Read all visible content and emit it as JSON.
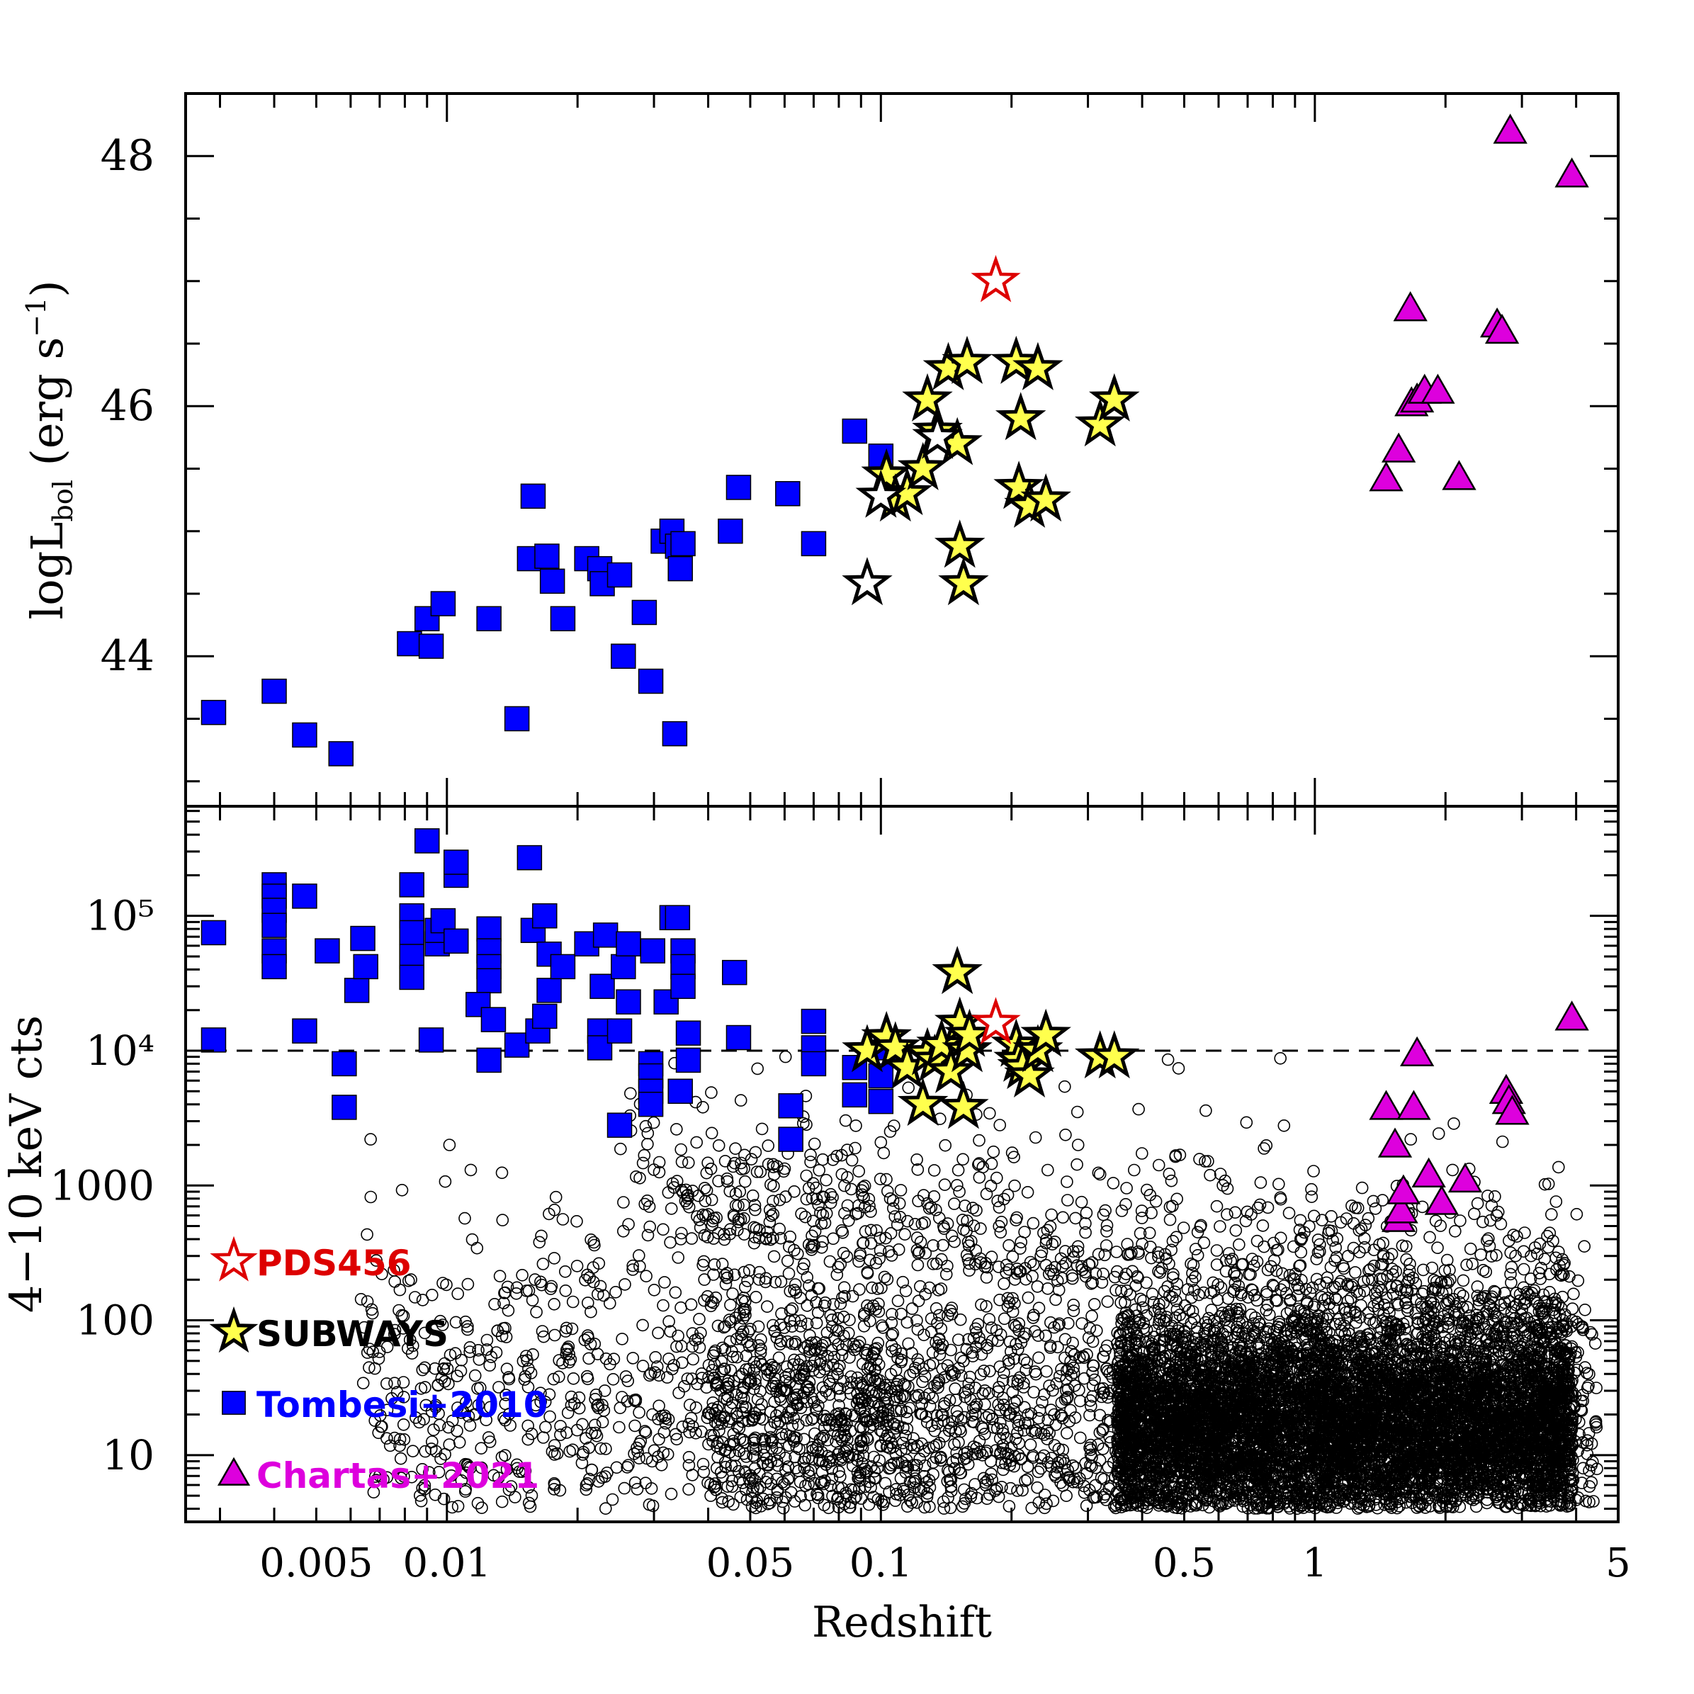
{
  "chart_data": {
    "type": "scatter",
    "xlabel": "Redshift",
    "x_scale": "log",
    "xlim": [
      0.0025,
      5
    ],
    "x_tick_labels": [
      "0.005",
      "0.01",
      "0.05",
      "0.1",
      "0.5",
      "1",
      "5"
    ],
    "x_tick_values": [
      0.005,
      0.01,
      0.05,
      0.1,
      0.5,
      1,
      5
    ],
    "panels": [
      {
        "name": "top",
        "ylabel_main": "logL",
        "ylabel_sub": "bol",
        "ylabel_unit": " (erg s",
        "ylabel_exp": "−1",
        "ylabel_close": ")",
        "ylim": [
          42.8,
          48.5
        ],
        "y_scale": "linear",
        "y_tick_labels": [
          "44",
          "46",
          "48"
        ],
        "y_tick_values": [
          44,
          46,
          48
        ],
        "series": [
          {
            "name": "Tombesi+2010",
            "marker": "square",
            "color": "#0000ff",
            "points": [
              [
                0.0029,
                43.55
              ],
              [
                0.004,
                43.72
              ],
              [
                0.0047,
                43.37
              ],
              [
                0.0057,
                43.22
              ],
              [
                0.0082,
                44.1
              ],
              [
                0.009,
                44.3
              ],
              [
                0.0092,
                44.08
              ],
              [
                0.0098,
                44.42
              ],
              [
                0.0125,
                44.3
              ],
              [
                0.0145,
                43.5
              ],
              [
                0.0155,
                44.78
              ],
              [
                0.0158,
                45.28
              ],
              [
                0.017,
                44.8
              ],
              [
                0.0175,
                44.6
              ],
              [
                0.0185,
                44.3
              ],
              [
                0.021,
                44.78
              ],
              [
                0.0225,
                44.7
              ],
              [
                0.0228,
                44.58
              ],
              [
                0.025,
                44.65
              ],
              [
                0.0255,
                44.0
              ],
              [
                0.0285,
                44.35
              ],
              [
                0.0295,
                43.8
              ],
              [
                0.0315,
                44.92
              ],
              [
                0.033,
                45.0
              ],
              [
                0.0335,
                43.38
              ],
              [
                0.034,
                44.88
              ],
              [
                0.0345,
                44.7
              ],
              [
                0.035,
                44.9
              ],
              [
                0.045,
                45.0
              ],
              [
                0.047,
                45.35
              ],
              [
                0.061,
                45.3
              ],
              [
                0.07,
                44.9
              ],
              [
                0.087,
                45.8
              ],
              [
                0.1,
                45.6
              ]
            ]
          },
          {
            "name": "SUBWAYS",
            "marker": "star",
            "color": "#ffff4d",
            "points": [
              [
                0.103,
                45.45
              ],
              [
                0.108,
                45.25
              ],
              [
                0.115,
                45.3
              ],
              [
                0.125,
                45.5
              ],
              [
                0.128,
                46.05
              ],
              [
                0.135,
                45.8
              ],
              [
                0.143,
                46.3
              ],
              [
                0.15,
                45.7
              ],
              [
                0.152,
                44.88
              ],
              [
                0.155,
                44.58
              ],
              [
                0.158,
                46.35
              ],
              [
                0.205,
                46.35
              ],
              [
                0.208,
                45.35
              ],
              [
                0.21,
                45.9
              ],
              [
                0.22,
                45.2
              ],
              [
                0.23,
                46.3
              ],
              [
                0.24,
                45.25
              ],
              [
                0.32,
                45.85
              ],
              [
                0.345,
                46.05
              ]
            ]
          },
          {
            "name": "SUBWAYS (open)",
            "marker": "star",
            "color": "#ffffff",
            "points": [
              [
                0.093,
                44.58
              ],
              [
                0.1,
                45.28
              ],
              [
                0.135,
                45.75
              ]
            ]
          },
          {
            "name": "PDS456",
            "marker": "open-star",
            "color": "#dd0000",
            "points": [
              [
                0.184,
                47.0
              ]
            ]
          },
          {
            "name": "Chartas+2021",
            "marker": "triangle",
            "color": "#dd00dd",
            "points": [
              [
                1.46,
                45.42
              ],
              [
                1.56,
                45.65
              ],
              [
                1.66,
                46.78
              ],
              [
                1.67,
                46.02
              ],
              [
                1.72,
                46.05
              ],
              [
                1.79,
                46.12
              ],
              [
                1.92,
                46.12
              ],
              [
                2.15,
                45.43
              ],
              [
                2.63,
                46.65
              ],
              [
                2.7,
                46.6
              ],
              [
                2.82,
                48.2
              ],
              [
                3.91,
                47.85
              ]
            ]
          }
        ]
      },
      {
        "name": "bottom",
        "ylabel": "4−10 keV cts",
        "ylim": [
          3.2,
          650000
        ],
        "y_scale": "log",
        "y_tick_labels": [
          "10",
          "100",
          "1000",
          "10⁴",
          "10⁵"
        ],
        "y_tick_values": [
          10,
          100,
          1000,
          10000,
          100000
        ],
        "reference_line": {
          "y": 10000,
          "style": "dashed"
        },
        "series": [
          {
            "name": "Tombesi+2010",
            "marker": "square",
            "color": "#0000ff",
            "points": [
              [
                0.0029,
                75000
              ],
              [
                0.0029,
                12000
              ],
              [
                0.004,
                170000
              ],
              [
                0.004,
                140000
              ],
              [
                0.004,
                110000
              ],
              [
                0.004,
                85000
              ],
              [
                0.004,
                55000
              ],
              [
                0.004,
                42000
              ],
              [
                0.0047,
                140000
              ],
              [
                0.0047,
                14000
              ],
              [
                0.0053,
                55000
              ],
              [
                0.0058,
                8000
              ],
              [
                0.0058,
                3800
              ],
              [
                0.0062,
                28000
              ],
              [
                0.0064,
                68000
              ],
              [
                0.0065,
                42000
              ],
              [
                0.0083,
                170000
              ],
              [
                0.0083,
                100000
              ],
              [
                0.0083,
                75000
              ],
              [
                0.0083,
                50000
              ],
              [
                0.0083,
                35000
              ],
              [
                0.009,
                360000
              ],
              [
                0.0092,
                12000
              ],
              [
                0.0095,
                62000
              ],
              [
                0.0095,
                78000
              ],
              [
                0.0098,
                92000
              ],
              [
                0.0105,
                200000
              ],
              [
                0.0105,
                250000
              ],
              [
                0.0105,
                65000
              ],
              [
                0.0125,
                80000
              ],
              [
                0.0125,
                55000
              ],
              [
                0.0125,
                42000
              ],
              [
                0.0125,
                33000
              ],
              [
                0.0125,
                8500
              ],
              [
                0.0118,
                22000
              ],
              [
                0.0128,
                17000
              ],
              [
                0.0145,
                11000
              ],
              [
                0.0155,
                270000
              ],
              [
                0.0158,
                78000
              ],
              [
                0.0168,
                100000
              ],
              [
                0.0162,
                14000
              ],
              [
                0.0168,
                18000
              ],
              [
                0.0172,
                28000
              ],
              [
                0.0172,
                52000
              ],
              [
                0.0185,
                42000
              ],
              [
                0.021,
                62000
              ],
              [
                0.0225,
                14000
              ],
              [
                0.0225,
                10500
              ],
              [
                0.0228,
                30000
              ],
              [
                0.0232,
                72000
              ],
              [
                0.0255,
                42000
              ],
              [
                0.025,
                14000
              ],
              [
                0.0262,
                62000
              ],
              [
                0.0262,
                23000
              ],
              [
                0.025,
                2800
              ],
              [
                0.0295,
                8000
              ],
              [
                0.0295,
                6500
              ],
              [
                0.0295,
                5000
              ],
              [
                0.0295,
                4000
              ],
              [
                0.0298,
                55000
              ],
              [
                0.032,
                23000
              ],
              [
                0.033,
                97000
              ],
              [
                0.034,
                97000
              ],
              [
                0.035,
                55000
              ],
              [
                0.035,
                42000
              ],
              [
                0.035,
                30000
              ],
              [
                0.0345,
                5000
              ],
              [
                0.036,
                8500
              ],
              [
                0.036,
                13500
              ],
              [
                0.046,
                38000
              ],
              [
                0.047,
                12500
              ],
              [
                0.062,
                3900
              ],
              [
                0.062,
                2200
              ],
              [
                0.07,
                16500
              ],
              [
                0.07,
                10500
              ],
              [
                0.07,
                8000
              ],
              [
                0.087,
                4700
              ],
              [
                0.087,
                7500
              ],
              [
                0.1,
                6500
              ],
              [
                0.1,
                4200
              ],
              [
                0.103,
                10500
              ]
            ]
          },
          {
            "name": "SUBWAYS",
            "marker": "star",
            "color": "#ffff4d",
            "points": [
              [
                0.093,
                10000
              ],
              [
                0.103,
                12500
              ],
              [
                0.108,
                10500
              ],
              [
                0.115,
                7500
              ],
              [
                0.125,
                4000
              ],
              [
                0.128,
                9500
              ],
              [
                0.133,
                8500
              ],
              [
                0.138,
                11000
              ],
              [
                0.145,
                7000
              ],
              [
                0.15,
                38000
              ],
              [
                0.152,
                16000
              ],
              [
                0.155,
                3800
              ],
              [
                0.158,
                10000
              ],
              [
                0.16,
                13000
              ],
              [
                0.205,
                11000
              ],
              [
                0.208,
                8500
              ],
              [
                0.212,
                7500
              ],
              [
                0.22,
                6500
              ],
              [
                0.23,
                10000
              ],
              [
                0.24,
                13000
              ],
              [
                0.32,
                9000
              ],
              [
                0.345,
                9000
              ]
            ]
          },
          {
            "name": "PDS456",
            "marker": "open-star",
            "color": "#dd0000",
            "points": [
              [
                0.184,
                16000
              ]
            ]
          },
          {
            "name": "Chartas+2021",
            "marker": "triangle",
            "color": "#dd00dd",
            "points": [
              [
                1.46,
                3800
              ],
              [
                1.53,
                2000
              ],
              [
                1.56,
                560
              ],
              [
                1.58,
                650
              ],
              [
                1.6,
                900
              ],
              [
                1.69,
                3800
              ],
              [
                1.72,
                9500
              ],
              [
                1.83,
                1200
              ],
              [
                1.96,
                750
              ],
              [
                2.22,
                1100
              ],
              [
                2.76,
                5000
              ],
              [
                2.8,
                4200
              ],
              [
                2.85,
                3500
              ],
              [
                3.91,
                17500
              ]
            ]
          },
          {
            "name": "background sources",
            "marker": "open-circle",
            "color": "#000000",
            "cloud": "dense distribution, z ~ 0.005–5, counts ~ 4–20000, densest at z ~ 0.3–3, counts ~ 8–100"
          }
        ]
      }
    ],
    "legend": {
      "placement": "bottom-left of lower panel",
      "entries": [
        {
          "label": "PDS456",
          "marker": "open-star",
          "color": "#dd0000"
        },
        {
          "label": "SUBWAYS",
          "marker": "star",
          "color": "#000000"
        },
        {
          "label": "Tombesi+2010",
          "marker": "square",
          "color": "#0000ff"
        },
        {
          "label": "Chartas+2021",
          "marker": "triangle",
          "color": "#dd00dd"
        }
      ]
    }
  }
}
